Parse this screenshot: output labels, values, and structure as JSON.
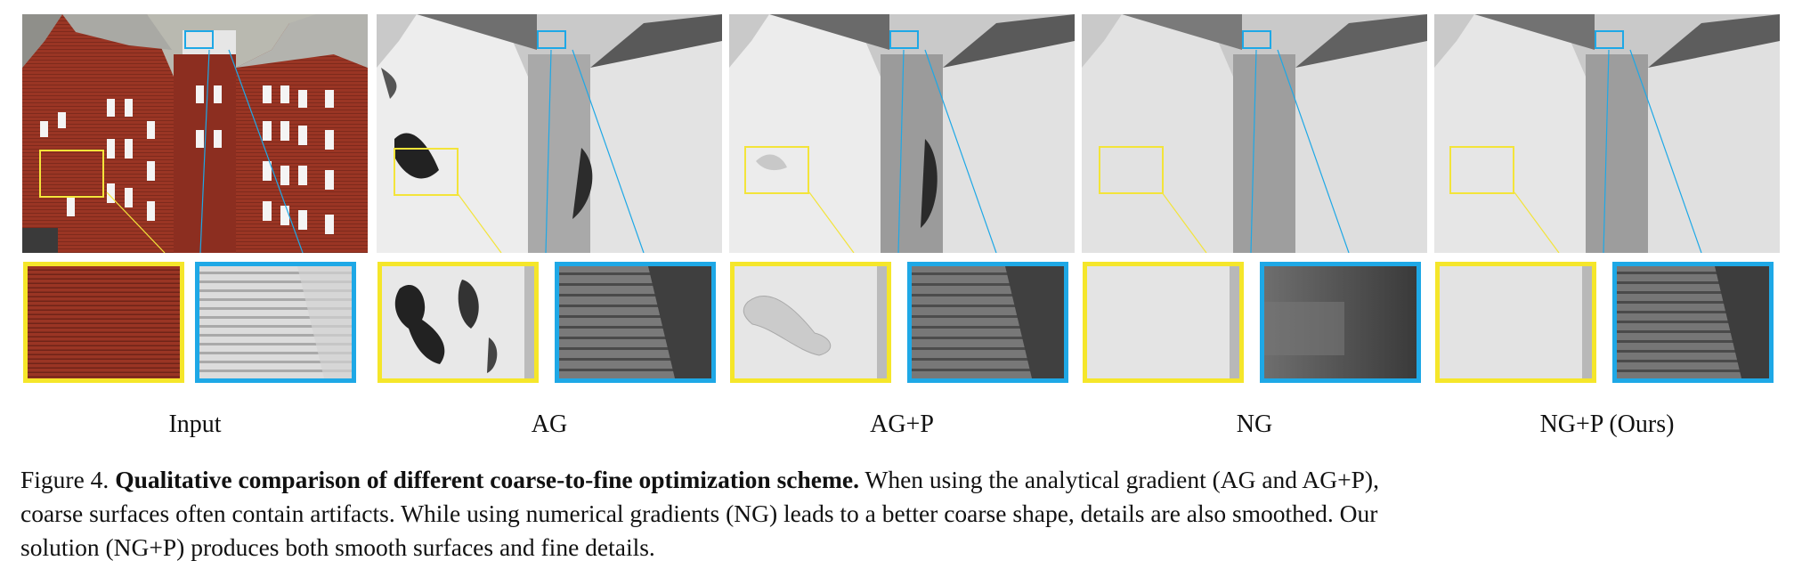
{
  "panels": [
    {
      "label": "Input",
      "style": "photo"
    },
    {
      "label": "AG",
      "style": "render",
      "artifact": "large-holes"
    },
    {
      "label": "AG+P",
      "style": "render",
      "artifact": "blob"
    },
    {
      "label": "NG",
      "style": "render",
      "artifact": "smooth"
    },
    {
      "label": "NG+P (Ours)",
      "style": "render",
      "artifact": "detailed"
    }
  ],
  "colors": {
    "yellow_box": "#f5e62a",
    "blue_box": "#1ea8e6",
    "brick": "#9a3524",
    "render_gray": "#cfcfcf"
  },
  "caption": {
    "prefix": "Figure 4.",
    "bold": "Qualitative comparison of different coarse-to-fine optimization scheme.",
    "line1_rest": "When using the analytical gradient (AG and AG+P),",
    "line2": "coarse surfaces often contain artifacts. While using numerical gradients (NG) leads to a better coarse shape, details are also smoothed. Our",
    "line3": "solution (NG+P) produces both smooth surfaces and fine details."
  }
}
